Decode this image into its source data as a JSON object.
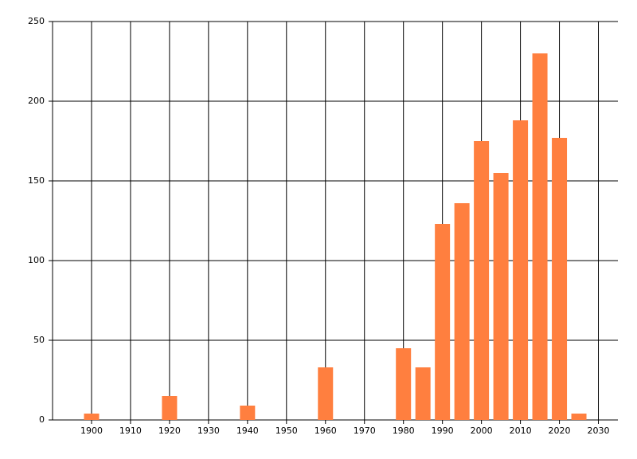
{
  "chart_data": {
    "type": "bar",
    "x": [
      1900,
      1920,
      1940,
      1960,
      1980,
      1985,
      1990,
      1995,
      2000,
      2005,
      2010,
      2015,
      2020,
      2025
    ],
    "values": [
      4,
      15,
      9,
      33,
      45,
      33,
      123,
      136,
      175,
      155,
      188,
      230,
      177,
      4
    ],
    "color": "#ff7f3f",
    "xlim": [
      1890,
      2035
    ],
    "xticks": [
      1900,
      1910,
      1920,
      1930,
      1940,
      1950,
      1960,
      1970,
      1980,
      1990,
      2000,
      2010,
      2020,
      2030
    ],
    "ylim": [
      0,
      250
    ],
    "yticks": [
      0,
      50,
      100,
      150,
      200,
      250
    ],
    "grid": true
  }
}
